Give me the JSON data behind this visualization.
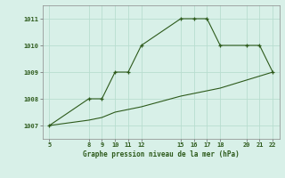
{
  "x_upper": [
    5,
    8,
    9,
    10,
    11,
    12,
    15,
    16,
    17,
    18,
    20,
    21,
    22
  ],
  "y_upper": [
    1007,
    1008,
    1008,
    1009,
    1009,
    1010,
    1011,
    1011,
    1011,
    1010,
    1010,
    1010,
    1009
  ],
  "x_lower": [
    5,
    8,
    9,
    10,
    11,
    12,
    15,
    16,
    17,
    18,
    20,
    21,
    22
  ],
  "y_lower": [
    1007.0,
    1007.2,
    1007.3,
    1007.5,
    1007.6,
    1007.7,
    1008.1,
    1008.2,
    1008.3,
    1008.4,
    1008.7,
    1008.85,
    1009.0
  ],
  "line_color": "#2d5a1b",
  "bg_color": "#d8f0e8",
  "grid_color": "#b8ddd0",
  "xlabel": "Graphe pression niveau de la mer (hPa)",
  "xticks": [
    5,
    8,
    9,
    10,
    11,
    12,
    15,
    16,
    17,
    18,
    20,
    21,
    22
  ],
  "yticks": [
    1007,
    1008,
    1009,
    1010,
    1011
  ],
  "ylim": [
    1006.5,
    1011.5
  ],
  "xlim": [
    4.5,
    22.5
  ],
  "fig_width": 3.2,
  "fig_height": 2.0,
  "dpi": 100
}
